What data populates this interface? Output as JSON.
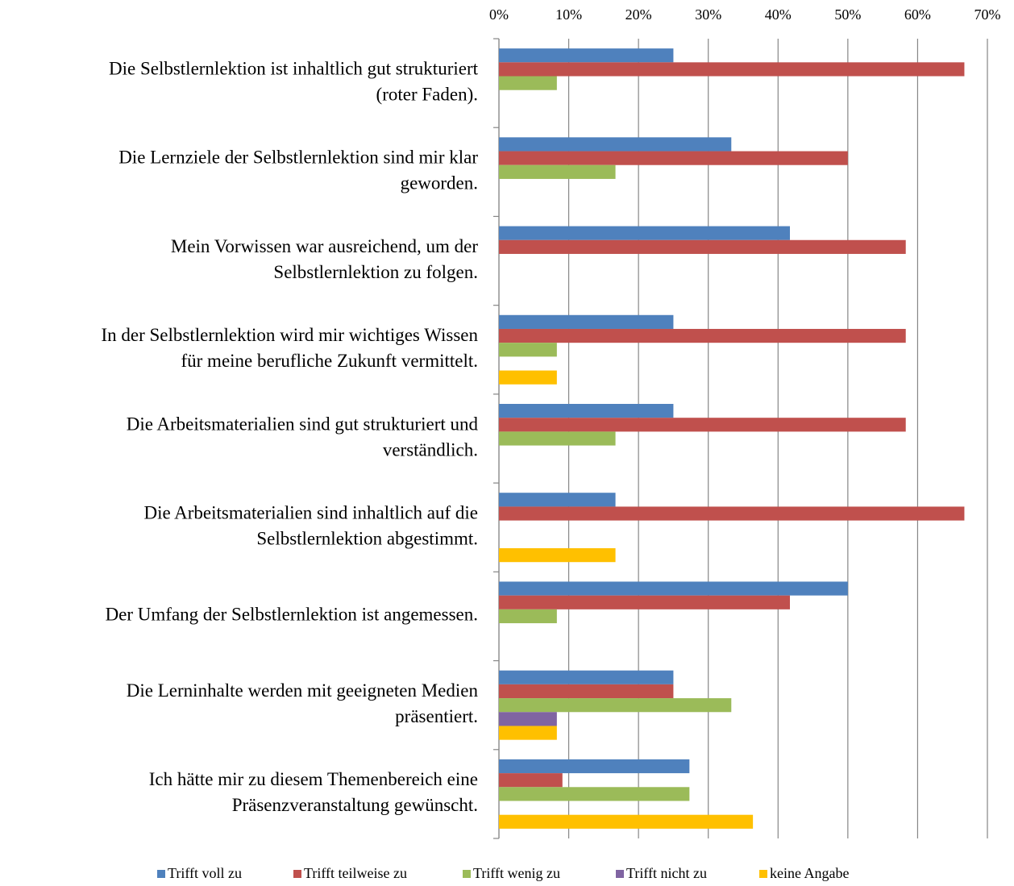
{
  "chart_data": {
    "type": "barh",
    "categories": [
      [
        "Die Selbstlernlektion ist inhaltlich gut strukturiert",
        "(roter Faden)."
      ],
      [
        "Die Lernziele der Selbstlernlektion sind mir klar",
        "geworden."
      ],
      [
        "Mein Vorwissen war ausreichend, um der",
        "Selbstlernlektion zu folgen."
      ],
      [
        "In der Selbstlernlektion wird mir wichtiges Wissen",
        "für meine berufliche Zukunft vermittelt."
      ],
      [
        "Die Arbeitsmaterialien sind gut strukturiert und",
        "verständlich."
      ],
      [
        "Die Arbeitsmaterialien sind inhaltlich auf die",
        "Selbstlernlektion abgestimmt."
      ],
      [
        "Der Umfang der Selbstlernlektion ist angemessen."
      ],
      [
        "Die Lerninhalte werden mit geeigneten Medien",
        "präsentiert."
      ],
      [
        "Ich hätte mir zu diesem Themenbereich eine",
        "Präsenzveranstaltung gewünscht."
      ]
    ],
    "series": [
      {
        "name": "Trifft voll zu",
        "color": "#4f81bd",
        "values": [
          25,
          33.3,
          41.7,
          25,
          25,
          16.7,
          50,
          25,
          27.3
        ]
      },
      {
        "name": "Trifft teilweise zu",
        "color": "#c0504d",
        "values": [
          66.7,
          50,
          58.3,
          58.3,
          58.3,
          66.7,
          41.7,
          25,
          9.1
        ]
      },
      {
        "name": "Trifft wenig zu",
        "color": "#9bbb59",
        "values": [
          8.3,
          16.7,
          0,
          8.3,
          16.7,
          0,
          8.3,
          33.3,
          27.3
        ]
      },
      {
        "name": "Trifft nicht zu",
        "color": "#8064a2",
        "values": [
          0,
          0,
          0,
          0,
          0,
          0,
          0,
          8.3,
          0
        ]
      },
      {
        "name": "keine Angabe",
        "color": "#ffc000",
        "values": [
          0,
          0,
          0,
          8.3,
          0,
          16.7,
          0,
          8.3,
          36.4
        ]
      }
    ],
    "xlim": [
      0,
      70
    ],
    "xticks": [
      {
        "value": 0,
        "label": "0%"
      },
      {
        "value": 10,
        "label": "10%"
      },
      {
        "value": 20,
        "label": "20%"
      },
      {
        "value": 30,
        "label": "30%"
      },
      {
        "value": 40,
        "label": "40%"
      },
      {
        "value": 50,
        "label": "50%"
      },
      {
        "value": 60,
        "label": "60%"
      },
      {
        "value": 70,
        "label": "70%"
      }
    ],
    "grid": true,
    "legend": "bottom"
  }
}
